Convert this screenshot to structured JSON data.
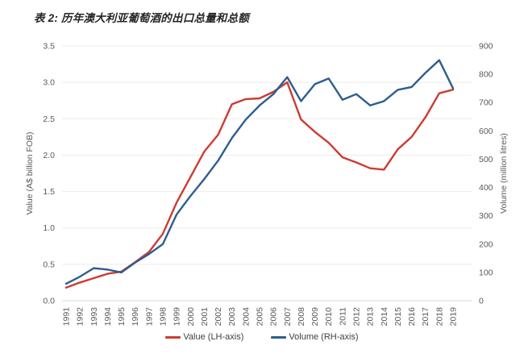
{
  "title": "表 2: 历年澳大利亚葡萄酒的出口总量和总额",
  "colors": {
    "value_line": "#cc3b33",
    "volume_line": "#2e5e8e",
    "grid": "#ebebeb",
    "baseline": "#d9d9d9",
    "axis_text": "#595959",
    "title_text": "#262626"
  },
  "legend": {
    "items": [
      {
        "label": "Value (LH-axis)",
        "color": "#cc3b33"
      },
      {
        "label": "Volume (RH-axis)",
        "color": "#2e5e8e"
      }
    ]
  },
  "chart_data": {
    "type": "line",
    "title": "表 2: 历年澳大利亚葡萄酒的出口总量和总额",
    "x": [
      1991,
      1992,
      1993,
      1994,
      1995,
      1996,
      1997,
      1998,
      1999,
      2000,
      2001,
      2002,
      2003,
      2004,
      2005,
      2006,
      2007,
      2008,
      2009,
      2010,
      2011,
      2012,
      2013,
      2014,
      2015,
      2016,
      2017,
      2018,
      2019
    ],
    "series": [
      {
        "name": "Value (LH-axis)",
        "axis": "left",
        "color": "#cc3b33",
        "values": [
          0.18,
          0.25,
          0.31,
          0.37,
          0.4,
          0.53,
          0.67,
          0.92,
          1.35,
          1.7,
          2.05,
          2.28,
          2.7,
          2.77,
          2.78,
          2.87,
          3.0,
          2.49,
          2.32,
          2.17,
          1.97,
          1.9,
          1.82,
          1.8,
          2.08,
          2.25,
          2.52,
          2.85,
          2.9
        ]
      },
      {
        "name": "Volume (RH-axis)",
        "axis": "right",
        "color": "#2e5e8e",
        "values": [
          60,
          85,
          115,
          110,
          100,
          135,
          165,
          200,
          305,
          370,
          430,
          495,
          575,
          640,
          690,
          730,
          790,
          705,
          765,
          785,
          710,
          730,
          690,
          705,
          745,
          755,
          805,
          850,
          750
        ]
      }
    ],
    "left_axis": {
      "label": "Value (A$ billion FOB)",
      "min": 0,
      "max": 3.5,
      "step": 0.5,
      "ticks": [
        "0.0",
        "0.5",
        "1.0",
        "1.5",
        "2.0",
        "2.5",
        "3.0",
        "3.5"
      ]
    },
    "right_axis": {
      "label": "Volume (million litres)",
      "min": 0,
      "max": 900,
      "step": 100,
      "ticks": [
        "0",
        "100",
        "200",
        "300",
        "400",
        "500",
        "600",
        "700",
        "800",
        "900"
      ]
    },
    "grid": true,
    "legend_position": "bottom"
  }
}
